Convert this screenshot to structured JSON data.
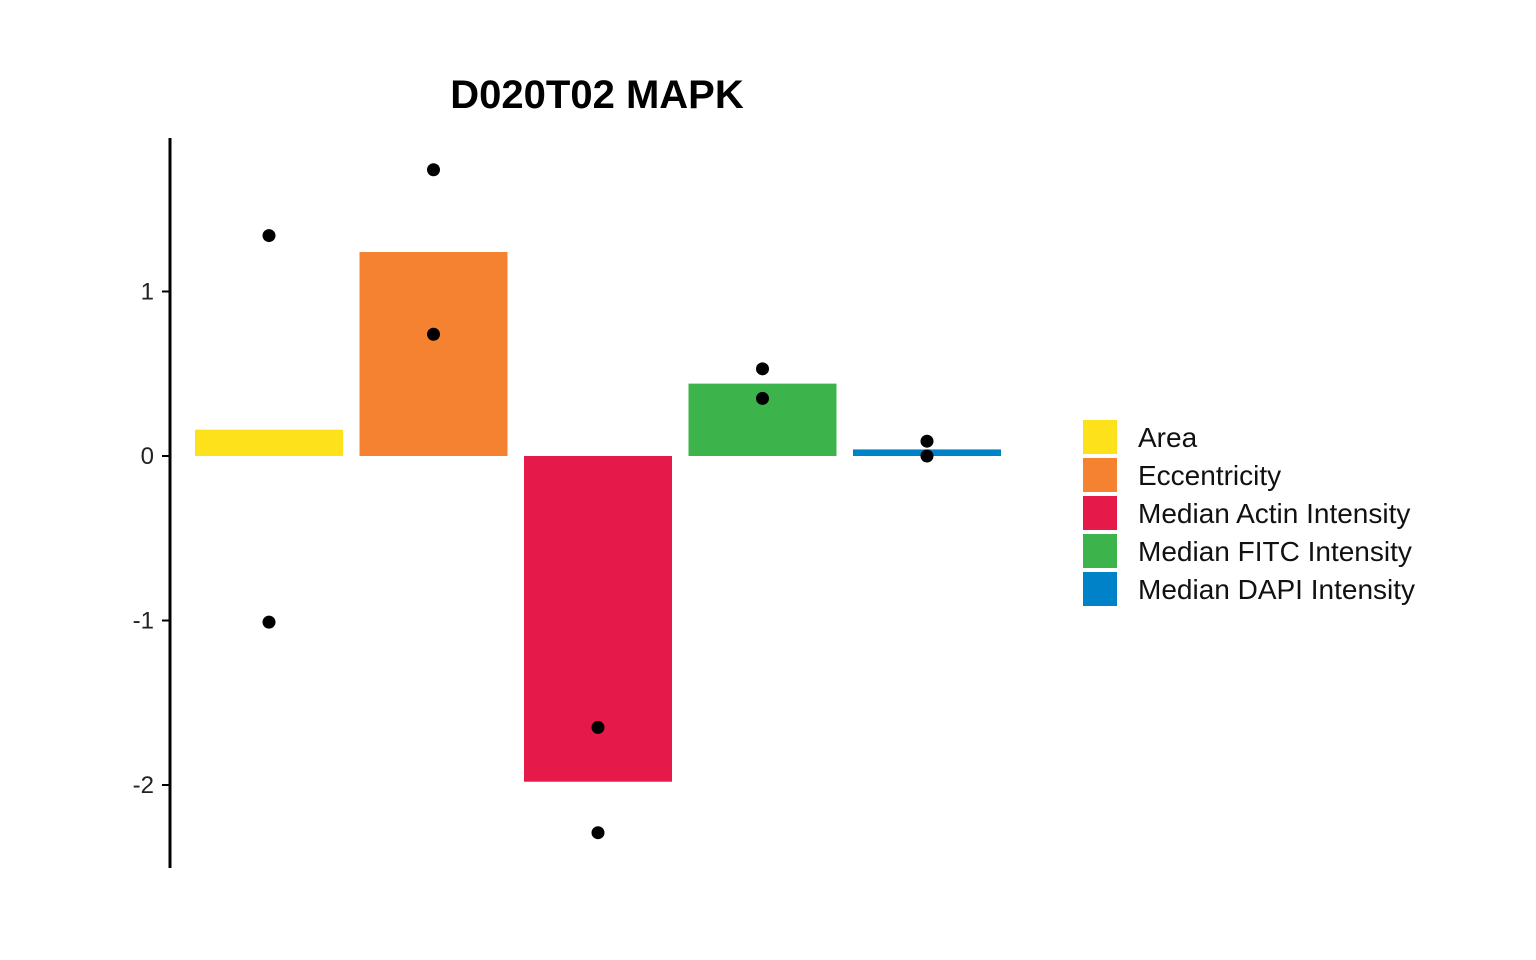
{
  "chart_data": {
    "type": "bar",
    "title": "D020T02 MAPK",
    "xlabel": "",
    "ylabel": "",
    "ylim": [
      -2.5,
      1.9
    ],
    "yticks": [
      -2,
      -1,
      0,
      1
    ],
    "ytick_labels": [
      "-2",
      "-1",
      "0",
      "1"
    ],
    "categories": [
      "Area",
      "Eccentricity",
      "Median Actin Intensity",
      "Median FITC Intensity",
      "Median DAPI Intensity"
    ],
    "values": [
      0.16,
      1.24,
      -1.98,
      0.44,
      0.04
    ],
    "points": [
      [
        1.34,
        -1.01
      ],
      [
        1.74,
        0.74
      ],
      [
        -1.65,
        -2.29
      ],
      [
        0.53,
        0.35
      ],
      [
        0.09,
        0.0
      ]
    ],
    "colors": [
      "#FDE11A",
      "#F58231",
      "#E6194B",
      "#3CB44B",
      "#0082C8"
    ],
    "point_color": "#000000",
    "grid": false,
    "legend": {
      "position": "right",
      "entries": [
        "Area",
        "Eccentricity",
        "Median Actin Intensity",
        "Median FITC Intensity",
        "Median DAPI Intensity"
      ]
    }
  }
}
